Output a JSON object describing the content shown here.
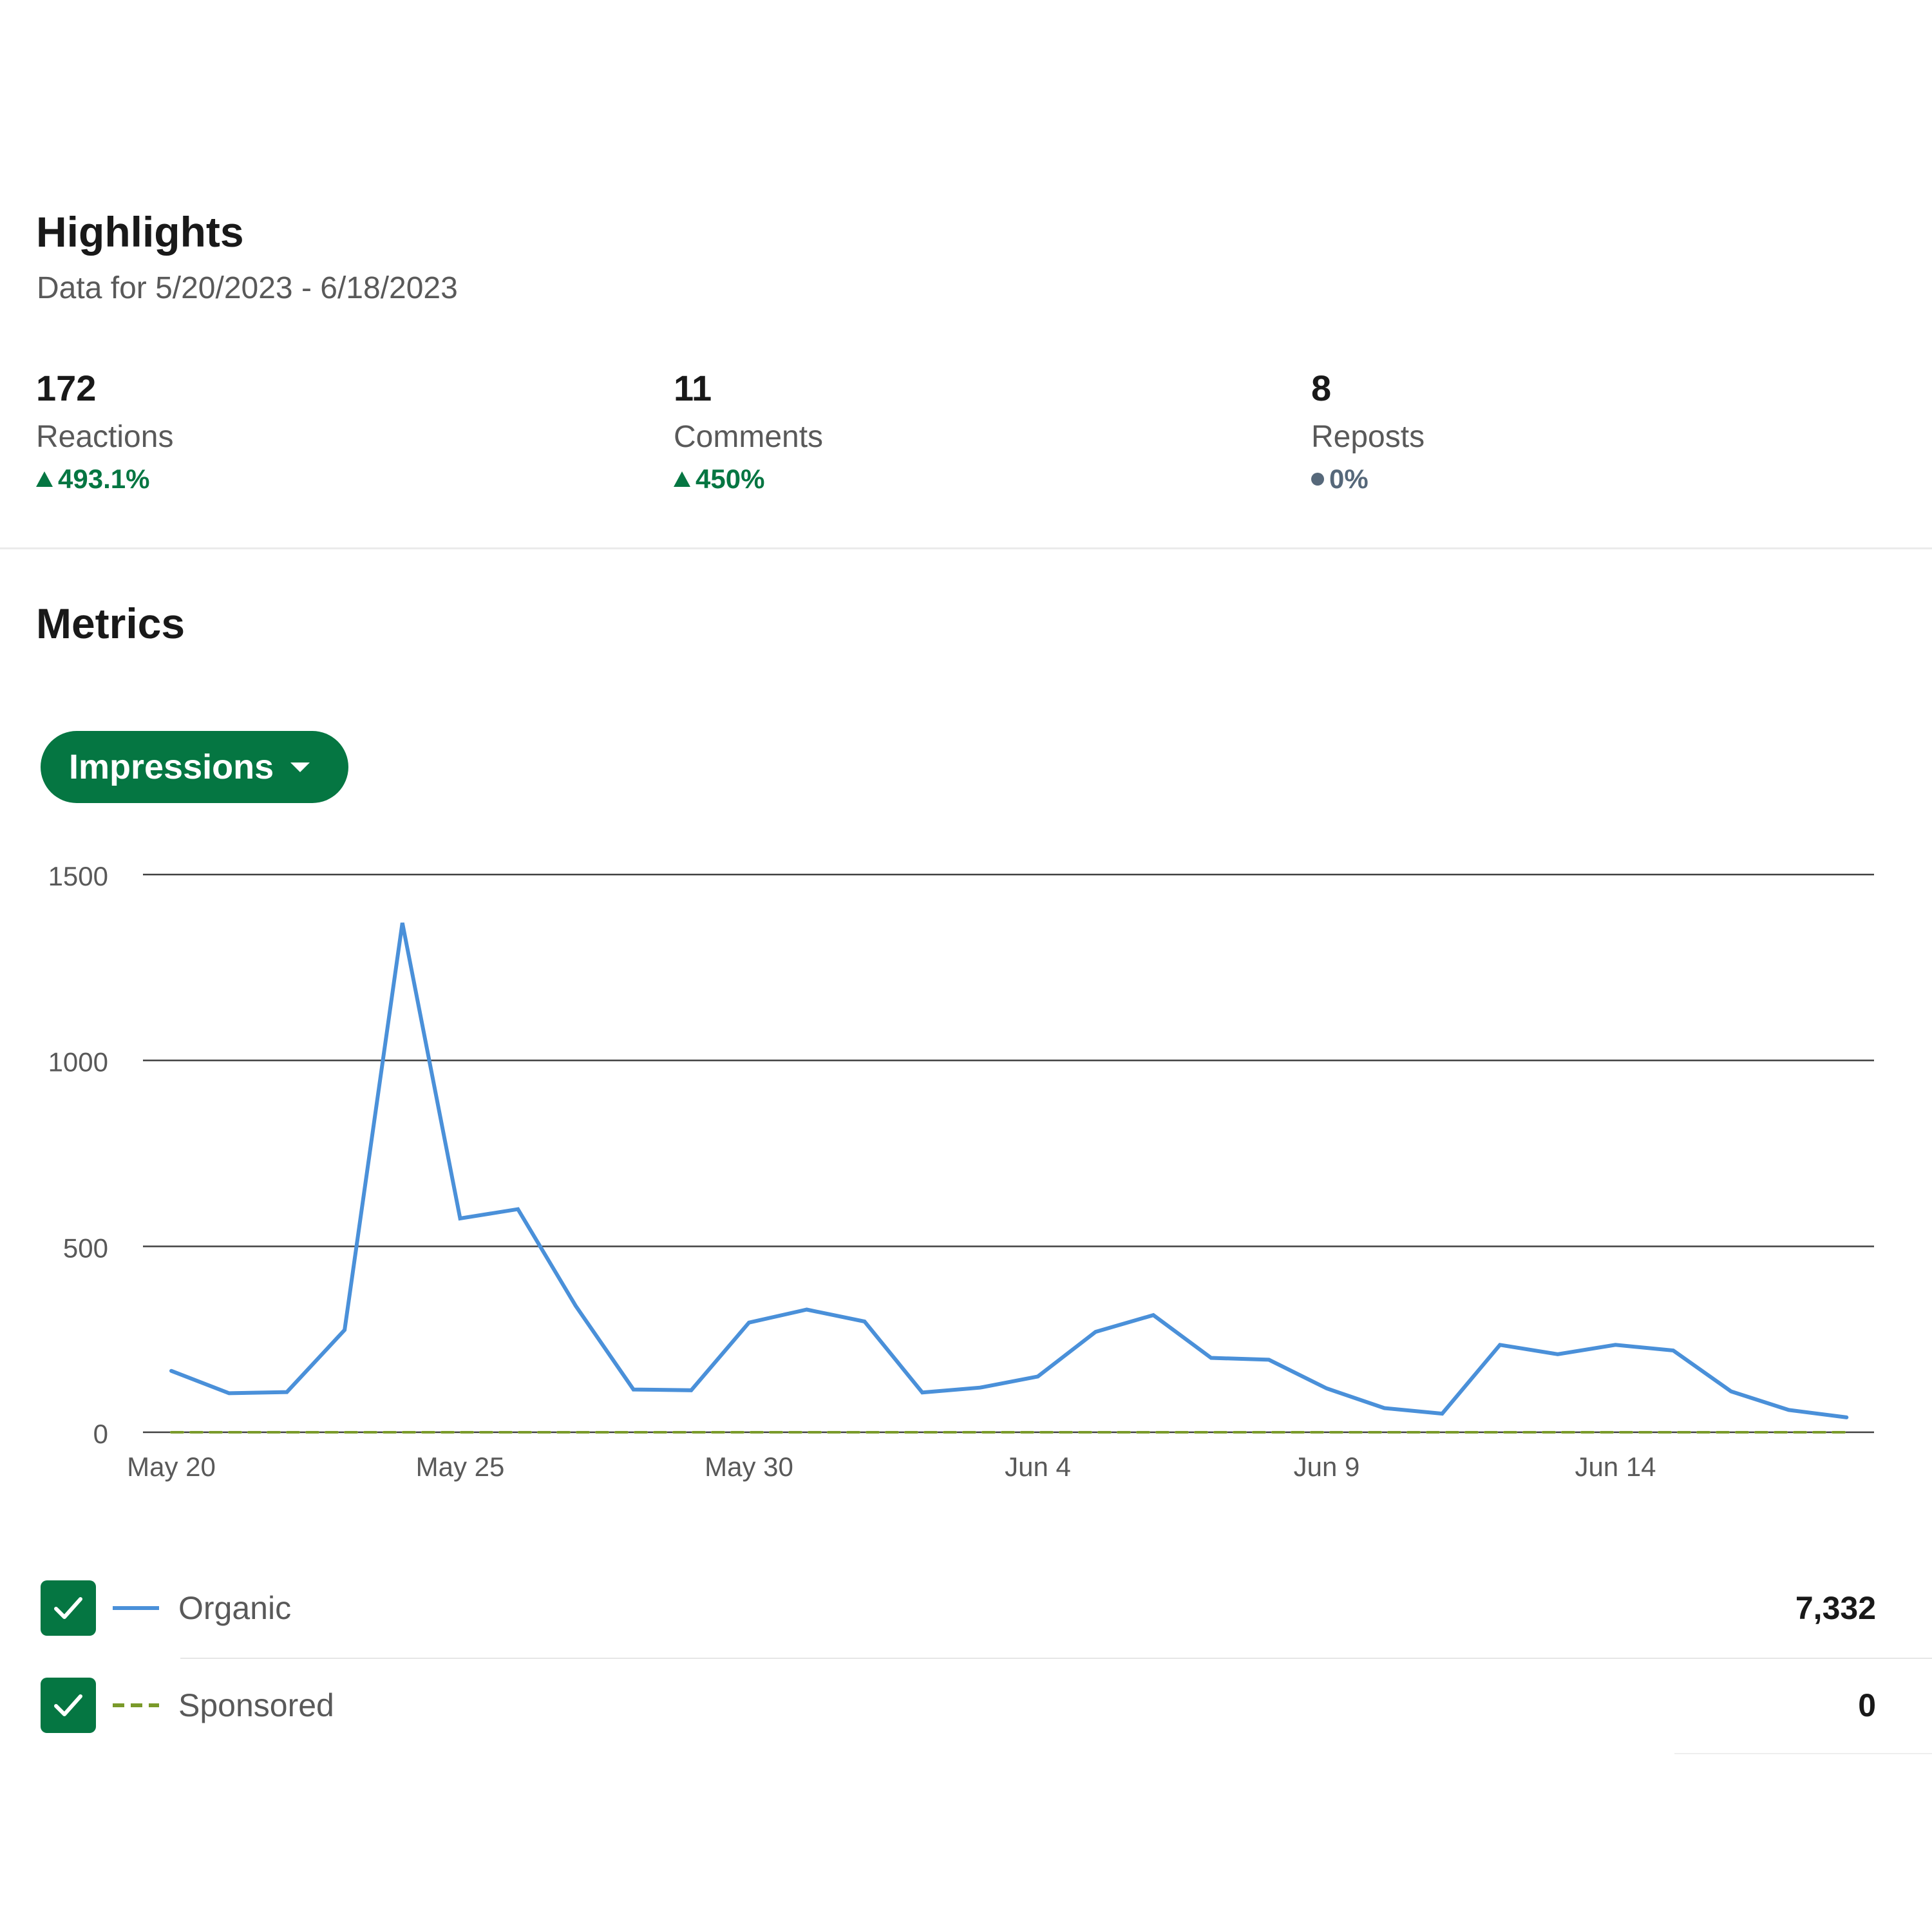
{
  "highlights": {
    "title": "Highlights",
    "subtitle": "Data for 5/20/2023 - 6/18/2023",
    "stats": [
      {
        "value": "172",
        "label": "Reactions",
        "change": "493.1%",
        "trend": "up"
      },
      {
        "value": "11",
        "label": "Comments",
        "change": "450%",
        "trend": "up"
      },
      {
        "value": "8",
        "label": "Reposts",
        "change": "0%",
        "trend": "flat"
      }
    ]
  },
  "metrics": {
    "title": "Metrics",
    "dropdown_label": "Impressions"
  },
  "legend": [
    {
      "name": "Organic",
      "total": "7,332",
      "style": "solid",
      "checked": true
    },
    {
      "name": "Sponsored",
      "total": "0",
      "style": "dashed",
      "checked": true
    }
  ],
  "colors": {
    "accent": "#057642",
    "organic": "#4a90d9",
    "sponsored": "#7a9a2a"
  },
  "chart_data": {
    "type": "line",
    "x": [
      "May 20",
      "May 21",
      "May 22",
      "May 23",
      "May 24",
      "May 25",
      "May 26",
      "May 27",
      "May 28",
      "May 29",
      "May 30",
      "May 31",
      "Jun 1",
      "Jun 2",
      "Jun 3",
      "Jun 4",
      "Jun 5",
      "Jun 6",
      "Jun 7",
      "Jun 8",
      "Jun 9",
      "Jun 10",
      "Jun 11",
      "Jun 12",
      "Jun 13",
      "Jun 14",
      "Jun 15",
      "Jun 16",
      "Jun 17",
      "Jun 18"
    ],
    "x_tick_labels": [
      "May 20",
      "May 25",
      "May 30",
      "Jun 4",
      "Jun 9",
      "Jun 14"
    ],
    "series": [
      {
        "name": "Organic",
        "values": [
          165,
          105,
          108,
          275,
          1370,
          575,
          600,
          340,
          115,
          113,
          295,
          330,
          298,
          107,
          120,
          150,
          270,
          315,
          200,
          195,
          118,
          65,
          50,
          235,
          210,
          235,
          220,
          110,
          60,
          40
        ]
      },
      {
        "name": "Sponsored",
        "values": [
          0,
          0,
          0,
          0,
          0,
          0,
          0,
          0,
          0,
          0,
          0,
          0,
          0,
          0,
          0,
          0,
          0,
          0,
          0,
          0,
          0,
          0,
          0,
          0,
          0,
          0,
          0,
          0,
          0,
          0
        ]
      }
    ],
    "ylim": [
      0,
      1500
    ],
    "yticks": [
      0,
      500,
      1000,
      1500
    ],
    "grid": true
  }
}
